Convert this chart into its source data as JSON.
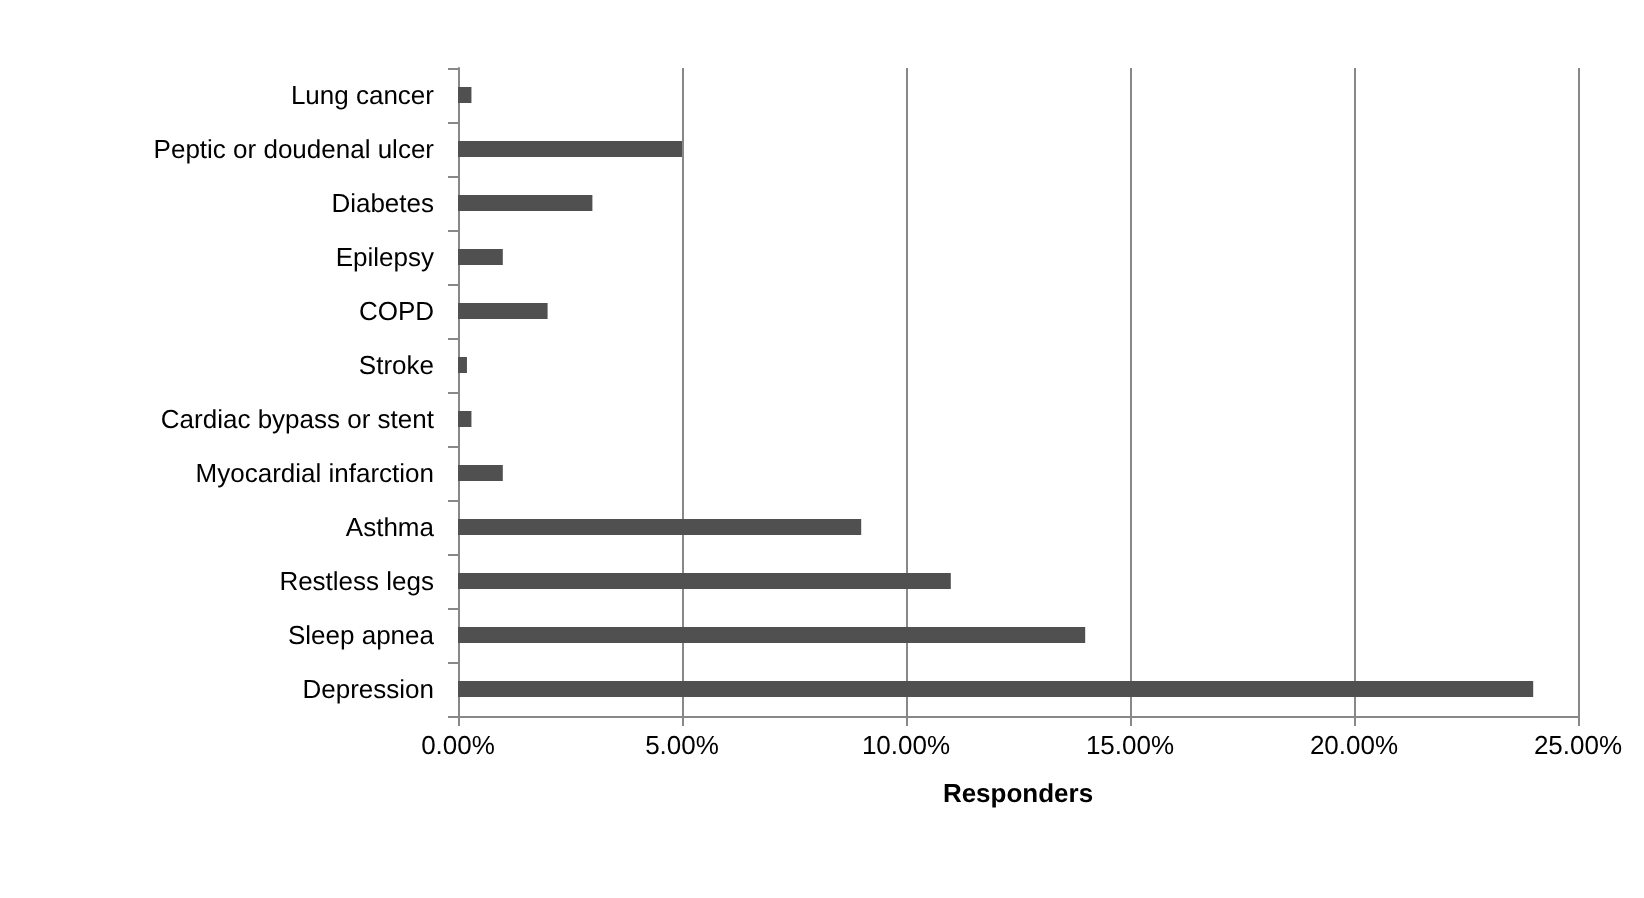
{
  "chart_data": {
    "type": "bar",
    "orientation": "horizontal",
    "xlabel": "Responders",
    "categories": [
      "Lung cancer",
      "Peptic or doudenal ulcer",
      "Diabetes",
      "Epilepsy",
      "COPD",
      "Stroke",
      "Cardiac bypass or stent",
      "Myocardial infarction",
      "Asthma",
      "Restless legs",
      "Sleep apnea",
      "Depression"
    ],
    "values": [
      0.3,
      5,
      3,
      1,
      2,
      0.2,
      0.3,
      1,
      9,
      11,
      14,
      24
    ],
    "color": "#505050",
    "xlim": [
      0,
      25
    ],
    "xticks": [
      {
        "value": 0,
        "label": "0.00%"
      },
      {
        "value": 5,
        "label": "5.00%"
      },
      {
        "value": 10,
        "label": "10.00%"
      },
      {
        "value": 15,
        "label": "15.00%"
      },
      {
        "value": 20,
        "label": "20.00%"
      },
      {
        "value": 25,
        "label": "25.00%"
      }
    ],
    "grid": "x"
  }
}
